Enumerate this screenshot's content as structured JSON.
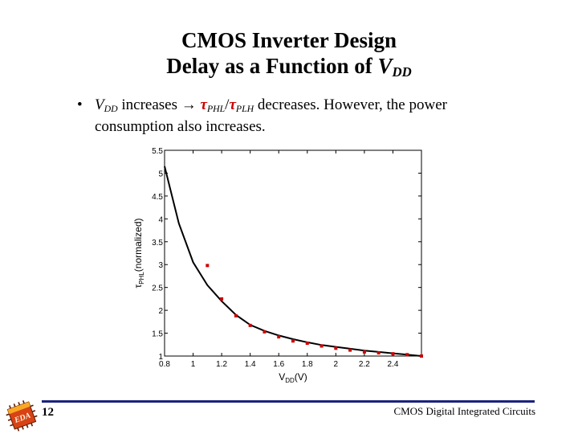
{
  "slide": {
    "title_line1": "CMOS Inverter Design",
    "title_line2_prefix": "Delay as a Function of ",
    "title_line2_var": "V",
    "title_line2_var_sub": "DD",
    "bullet_var": "V",
    "bullet_var_sub": "DD",
    "bullet_text_a": " increases → ",
    "bullet_tau1": "τ",
    "bullet_tau1_sub": "PHL",
    "bullet_sep": "/",
    "bullet_tau2": "τ",
    "bullet_tau2_sub": "PLH",
    "bullet_text_b": " decreases. However, the power consumption also increases.",
    "page_number": "12",
    "footer": "CMOS Digital Integrated Circuits",
    "logo_text": "EDA"
  },
  "chart_data": {
    "type": "line",
    "xlabel": "V",
    "xlabel_sub": "DD",
    "xlabel_unit": "(V)",
    "ylabel": "τ",
    "ylabel_sub": "PHL",
    "ylabel_rest": "(normalized)",
    "xlim": [
      0.8,
      2.6
    ],
    "ylim": [
      1,
      5.5
    ],
    "xticks": [
      0.8,
      1,
      1.2,
      1.4,
      1.6,
      1.8,
      2,
      2.2,
      2.4
    ],
    "xtick_labels": [
      "0.8",
      "1",
      "1.2",
      "1.4",
      "1.6",
      "1.8",
      "2",
      "2.2",
      "2.4"
    ],
    "yticks": [
      1,
      1.5,
      2,
      2.5,
      3,
      3.5,
      4,
      4.5,
      5,
      5.5
    ],
    "ytick_labels": [
      "1",
      "1.5",
      "2",
      "2.5",
      "3",
      "3.5",
      "4",
      "4.5",
      "5",
      "5.5"
    ],
    "series": [
      {
        "style": "line",
        "color": "#000000",
        "x": [
          0.8,
          0.9,
          1.0,
          1.1,
          1.2,
          1.3,
          1.4,
          1.5,
          1.6,
          1.7,
          1.8,
          1.9,
          2.0,
          2.1,
          2.2,
          2.3,
          2.4,
          2.5,
          2.6
        ],
        "y": [
          5.15,
          3.9,
          3.05,
          2.55,
          2.2,
          1.9,
          1.68,
          1.55,
          1.45,
          1.37,
          1.3,
          1.24,
          1.2,
          1.16,
          1.12,
          1.09,
          1.06,
          1.03,
          1.0
        ]
      },
      {
        "style": "markers",
        "color": "#cc0000",
        "x": [
          1.1,
          1.2,
          1.3,
          1.4,
          1.5,
          1.6,
          1.7,
          1.8,
          1.9,
          2.0,
          2.1,
          2.2,
          2.3,
          2.4,
          2.5,
          2.6
        ],
        "y": [
          2.98,
          2.25,
          1.88,
          1.67,
          1.53,
          1.42,
          1.33,
          1.28,
          1.22,
          1.17,
          1.13,
          1.09,
          1.07,
          1.05,
          1.03,
          1.0
        ]
      }
    ]
  }
}
